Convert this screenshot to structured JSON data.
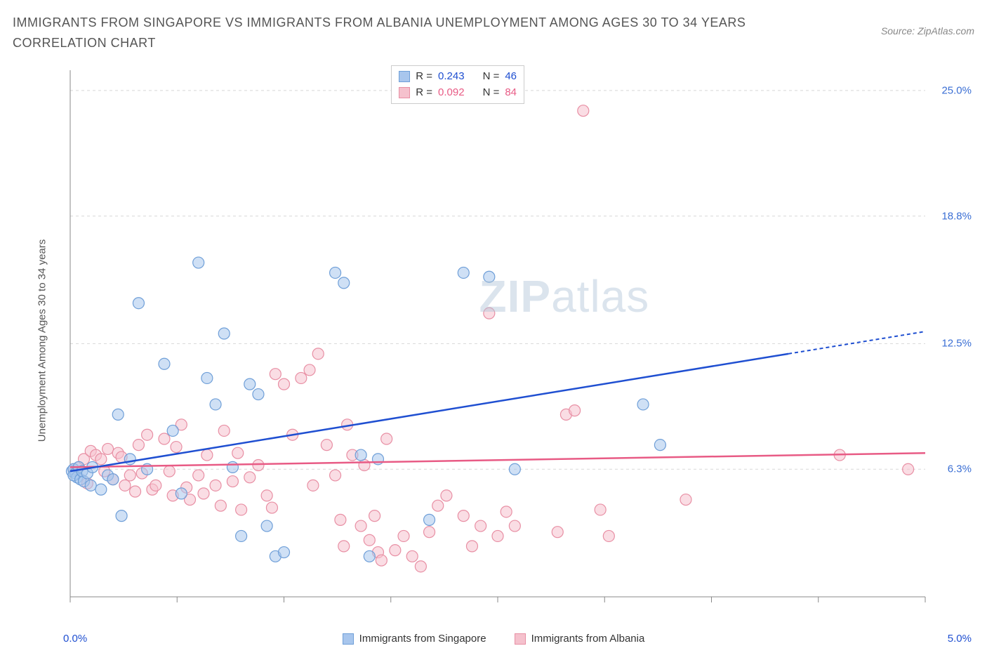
{
  "title": "IMMIGRANTS FROM SINGAPORE VS IMMIGRANTS FROM ALBANIA UNEMPLOYMENT AMONG AGES 30 TO 34 YEARS CORRELATION CHART",
  "source": "Source: ZipAtlas.com",
  "watermark_bold": "ZIP",
  "watermark_light": "atlas",
  "y_axis_label": "Unemployment Among Ages 30 to 34 years",
  "x_min_label": "0.0%",
  "x_max_label": "5.0%",
  "series": {
    "a": {
      "name": "Immigrants from Singapore",
      "fill": "#a8c6ed",
      "stroke": "#6f9fd8",
      "line_color": "#1f4fd1",
      "R_label": "R =",
      "R": "0.243",
      "N_label": "N =",
      "N": "46",
      "stat_color": "#1f4fd1",
      "trend": {
        "x1": 0.0,
        "y1": 6.2,
        "x2_solid": 4.2,
        "y2_solid": 12.0,
        "x2_dash": 5.0,
        "y2_dash": 13.1
      },
      "points": [
        [
          0.01,
          6.2
        ],
        [
          0.02,
          6.3
        ],
        [
          0.03,
          6.1
        ],
        [
          0.04,
          5.9
        ],
        [
          0.05,
          6.4
        ],
        [
          0.02,
          6.0
        ],
        [
          0.06,
          5.8
        ],
        [
          0.07,
          6.2
        ],
        [
          0.08,
          5.7
        ],
        [
          0.1,
          6.1
        ],
        [
          0.12,
          5.5
        ],
        [
          0.13,
          6.4
        ],
        [
          0.18,
          5.3
        ],
        [
          0.22,
          6.0
        ],
        [
          0.25,
          5.8
        ],
        [
          0.28,
          9.0
        ],
        [
          0.3,
          4.0
        ],
        [
          0.35,
          6.8
        ],
        [
          0.4,
          14.5
        ],
        [
          0.45,
          6.3
        ],
        [
          0.55,
          11.5
        ],
        [
          0.6,
          8.2
        ],
        [
          0.65,
          5.1
        ],
        [
          0.75,
          16.5
        ],
        [
          0.8,
          10.8
        ],
        [
          0.85,
          9.5
        ],
        [
          0.9,
          13.0
        ],
        [
          0.95,
          6.4
        ],
        [
          1.0,
          3.0
        ],
        [
          1.05,
          10.5
        ],
        [
          1.1,
          10.0
        ],
        [
          1.15,
          3.5
        ],
        [
          1.2,
          2.0
        ],
        [
          1.25,
          2.2
        ],
        [
          1.55,
          16.0
        ],
        [
          1.6,
          15.5
        ],
        [
          1.7,
          7.0
        ],
        [
          1.75,
          2.0
        ],
        [
          1.8,
          6.8
        ],
        [
          2.1,
          3.8
        ],
        [
          2.3,
          16.0
        ],
        [
          2.45,
          15.8
        ],
        [
          2.6,
          6.3
        ],
        [
          3.35,
          9.5
        ],
        [
          3.45,
          7.5
        ]
      ]
    },
    "b": {
      "name": "Immigrants from Albania",
      "fill": "#f5c1cd",
      "stroke": "#e88fa4",
      "line_color": "#e85b85",
      "R_label": "R =",
      "R": "0.092",
      "N_label": "N =",
      "N": "84",
      "stat_color": "#e85b85",
      "trend": {
        "x1": 0.0,
        "y1": 6.4,
        "x2_solid": 5.0,
        "y2_solid": 7.1,
        "x2_dash": 5.0,
        "y2_dash": 7.1
      },
      "points": [
        [
          0.02,
          6.3
        ],
        [
          0.05,
          6.4
        ],
        [
          0.08,
          6.8
        ],
        [
          0.1,
          5.6
        ],
        [
          0.12,
          7.2
        ],
        [
          0.15,
          7.0
        ],
        [
          0.18,
          6.8
        ],
        [
          0.2,
          6.2
        ],
        [
          0.22,
          7.3
        ],
        [
          0.25,
          5.8
        ],
        [
          0.28,
          7.1
        ],
        [
          0.3,
          6.9
        ],
        [
          0.32,
          5.5
        ],
        [
          0.35,
          6.0
        ],
        [
          0.38,
          5.2
        ],
        [
          0.4,
          7.5
        ],
        [
          0.42,
          6.1
        ],
        [
          0.45,
          8.0
        ],
        [
          0.48,
          5.3
        ],
        [
          0.5,
          5.5
        ],
        [
          0.55,
          7.8
        ],
        [
          0.58,
          6.2
        ],
        [
          0.6,
          5.0
        ],
        [
          0.62,
          7.4
        ],
        [
          0.65,
          8.5
        ],
        [
          0.68,
          5.4
        ],
        [
          0.7,
          4.8
        ],
        [
          0.75,
          6.0
        ],
        [
          0.78,
          5.1
        ],
        [
          0.8,
          7.0
        ],
        [
          0.85,
          5.5
        ],
        [
          0.88,
          4.5
        ],
        [
          0.9,
          8.2
        ],
        [
          0.95,
          5.7
        ],
        [
          0.98,
          7.1
        ],
        [
          1.0,
          4.3
        ],
        [
          1.05,
          5.9
        ],
        [
          1.1,
          6.5
        ],
        [
          1.15,
          5.0
        ],
        [
          1.18,
          4.4
        ],
        [
          1.2,
          11.0
        ],
        [
          1.25,
          10.5
        ],
        [
          1.3,
          8.0
        ],
        [
          1.35,
          10.8
        ],
        [
          1.4,
          11.2
        ],
        [
          1.42,
          5.5
        ],
        [
          1.45,
          12.0
        ],
        [
          1.5,
          7.5
        ],
        [
          1.55,
          6.0
        ],
        [
          1.58,
          3.8
        ],
        [
          1.6,
          2.5
        ],
        [
          1.62,
          8.5
        ],
        [
          1.65,
          7.0
        ],
        [
          1.7,
          3.5
        ],
        [
          1.72,
          6.5
        ],
        [
          1.75,
          2.8
        ],
        [
          1.78,
          4.0
        ],
        [
          1.8,
          2.2
        ],
        [
          1.82,
          1.8
        ],
        [
          1.85,
          7.8
        ],
        [
          1.9,
          2.3
        ],
        [
          1.95,
          3.0
        ],
        [
          2.0,
          2.0
        ],
        [
          2.05,
          1.5
        ],
        [
          2.1,
          3.2
        ],
        [
          2.15,
          4.5
        ],
        [
          2.2,
          5.0
        ],
        [
          2.3,
          4.0
        ],
        [
          2.35,
          2.5
        ],
        [
          2.4,
          3.5
        ],
        [
          2.45,
          14.0
        ],
        [
          2.5,
          3.0
        ],
        [
          2.55,
          4.2
        ],
        [
          2.6,
          3.5
        ],
        [
          2.85,
          3.2
        ],
        [
          2.9,
          9.0
        ],
        [
          2.95,
          9.2
        ],
        [
          3.0,
          24.0
        ],
        [
          3.1,
          4.3
        ],
        [
          3.15,
          3.0
        ],
        [
          3.6,
          4.8
        ],
        [
          4.5,
          7.0
        ],
        [
          4.9,
          6.3
        ]
      ]
    }
  },
  "chart": {
    "xlim": [
      0,
      5
    ],
    "ylim": [
      0,
      26
    ],
    "x_ticks": [
      0.0,
      0.625,
      1.25,
      1.875,
      2.5,
      3.125,
      3.75,
      4.375,
      5.0
    ],
    "y_grid": [
      6.3,
      12.5,
      18.8,
      25.0
    ],
    "y_tick_labels": [
      "6.3%",
      "12.5%",
      "18.8%",
      "25.0%"
    ],
    "y_tick_color": "#3b6fd4",
    "grid_color": "#d8d8d8",
    "axis_color": "#888888",
    "marker_radius": 8,
    "marker_opacity": 0.55,
    "bg": "#ffffff"
  }
}
